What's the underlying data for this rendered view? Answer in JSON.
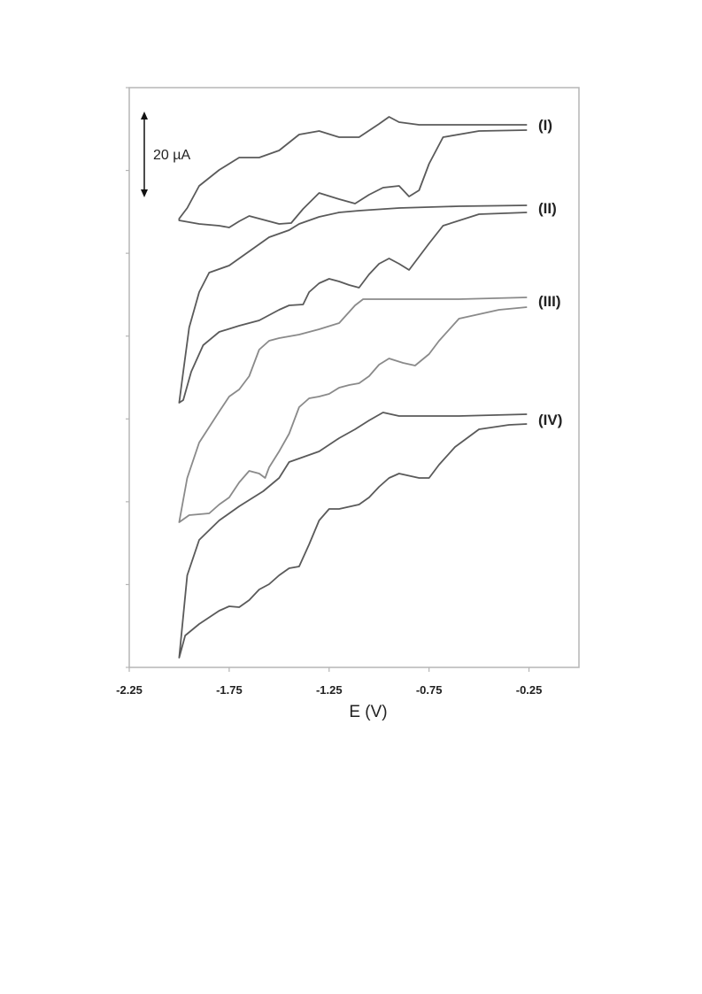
{
  "chart_data": {
    "type": "line",
    "title": "",
    "xlabel": "E (V)",
    "ylabel": "",
    "xlim": [
      -2.25,
      -0.0
    ],
    "x_ticks": [
      "-2.25",
      "-1.75",
      "-1.25",
      "-0.75",
      "-0.25"
    ],
    "x_tick_values": [
      -2.25,
      -1.75,
      -1.25,
      -0.75,
      -0.25
    ],
    "grid": false,
    "legend": "none",
    "scale_bar_label": "20 µA",
    "series": [
      {
        "name": "(I)",
        "color": "#5a5a5a",
        "points": [
          [
            -0.26,
            141
          ],
          [
            -0.6,
            141
          ],
          [
            -0.8,
            141
          ],
          [
            -0.9,
            138
          ],
          [
            -0.95,
            132
          ],
          [
            -1.0,
            140
          ],
          [
            -1.1,
            155
          ],
          [
            -1.2,
            155
          ],
          [
            -1.3,
            148
          ],
          [
            -1.4,
            152
          ],
          [
            -1.5,
            170
          ],
          [
            -1.6,
            178
          ],
          [
            -1.7,
            178
          ],
          [
            -1.8,
            192
          ],
          [
            -1.9,
            210
          ],
          [
            -1.96,
            235
          ],
          [
            -2.0,
            247
          ],
          [
            -2.0,
            249
          ],
          [
            -1.9,
            253
          ],
          [
            -1.8,
            255
          ],
          [
            -1.75,
            257
          ],
          [
            -1.7,
            250
          ],
          [
            -1.65,
            244
          ],
          [
            -1.6,
            247
          ],
          [
            -1.5,
            253
          ],
          [
            -1.44,
            252
          ],
          [
            -1.38,
            236
          ],
          [
            -1.3,
            218
          ],
          [
            -1.2,
            225
          ],
          [
            -1.12,
            230
          ],
          [
            -1.05,
            220
          ],
          [
            -0.98,
            212
          ],
          [
            -0.9,
            210
          ],
          [
            -0.85,
            222
          ],
          [
            -0.8,
            215
          ],
          [
            -0.75,
            185
          ],
          [
            -0.68,
            155
          ],
          [
            -0.5,
            148
          ],
          [
            -0.26,
            147
          ]
        ]
      },
      {
        "name": "(II)",
        "color": "#5a5a5a",
        "points": [
          [
            -0.26,
            232
          ],
          [
            -0.6,
            233
          ],
          [
            -0.9,
            235
          ],
          [
            -1.1,
            238
          ],
          [
            -1.2,
            240
          ],
          [
            -1.3,
            245
          ],
          [
            -1.4,
            253
          ],
          [
            -1.45,
            260
          ],
          [
            -1.55,
            268
          ],
          [
            -1.75,
            300
          ],
          [
            -1.85,
            308
          ],
          [
            -1.9,
            330
          ],
          [
            -1.95,
            370
          ],
          [
            -1.98,
            420
          ],
          [
            -2.0,
            455
          ],
          [
            -1.98,
            452
          ],
          [
            -1.94,
            420
          ],
          [
            -1.88,
            390
          ],
          [
            -1.8,
            375
          ],
          [
            -1.7,
            368
          ],
          [
            -1.6,
            362
          ],
          [
            -1.5,
            350
          ],
          [
            -1.45,
            345
          ],
          [
            -1.38,
            344
          ],
          [
            -1.35,
            330
          ],
          [
            -1.3,
            320
          ],
          [
            -1.25,
            315
          ],
          [
            -1.2,
            318
          ],
          [
            -1.15,
            322
          ],
          [
            -1.1,
            325
          ],
          [
            -1.05,
            310
          ],
          [
            -1.0,
            298
          ],
          [
            -0.95,
            292
          ],
          [
            -0.9,
            298
          ],
          [
            -0.85,
            305
          ],
          [
            -0.8,
            290
          ],
          [
            -0.75,
            275
          ],
          [
            -0.68,
            255
          ],
          [
            -0.5,
            242
          ],
          [
            -0.26,
            240
          ]
        ]
      },
      {
        "name": "(III)",
        "color": "#8a8a8a",
        "points": [
          [
            -0.26,
            336
          ],
          [
            -0.6,
            338
          ],
          [
            -0.85,
            338
          ],
          [
            -1.08,
            338
          ],
          [
            -1.12,
            345
          ],
          [
            -1.2,
            365
          ],
          [
            -1.3,
            372
          ],
          [
            -1.4,
            378
          ],
          [
            -1.5,
            382
          ],
          [
            -1.55,
            385
          ],
          [
            -1.6,
            395
          ],
          [
            -1.65,
            425
          ],
          [
            -1.7,
            440
          ],
          [
            -1.75,
            448
          ],
          [
            -1.8,
            465
          ],
          [
            -1.9,
            500
          ],
          [
            -1.96,
            540
          ],
          [
            -2.0,
            590
          ],
          [
            -1.95,
            582
          ],
          [
            -1.85,
            580
          ],
          [
            -1.8,
            570
          ],
          [
            -1.75,
            562
          ],
          [
            -1.7,
            545
          ],
          [
            -1.65,
            532
          ],
          [
            -1.6,
            535
          ],
          [
            -1.57,
            540
          ],
          [
            -1.55,
            528
          ],
          [
            -1.5,
            510
          ],
          [
            -1.45,
            490
          ],
          [
            -1.4,
            460
          ],
          [
            -1.35,
            450
          ],
          [
            -1.3,
            448
          ],
          [
            -1.25,
            445
          ],
          [
            -1.2,
            438
          ],
          [
            -1.15,
            435
          ],
          [
            -1.1,
            433
          ],
          [
            -1.05,
            425
          ],
          [
            -1.0,
            412
          ],
          [
            -0.95,
            405
          ],
          [
            -0.88,
            410
          ],
          [
            -0.82,
            413
          ],
          [
            -0.75,
            400
          ],
          [
            -0.7,
            385
          ],
          [
            -0.6,
            360
          ],
          [
            -0.4,
            350
          ],
          [
            -0.26,
            347
          ]
        ]
      },
      {
        "name": "(IV)",
        "color": "#5a5a5a",
        "points": [
          [
            -0.26,
            468
          ],
          [
            -0.6,
            470
          ],
          [
            -0.9,
            470
          ],
          [
            -0.98,
            466
          ],
          [
            -1.05,
            475
          ],
          [
            -1.12,
            485
          ],
          [
            -1.2,
            495
          ],
          [
            -1.3,
            510
          ],
          [
            -1.4,
            518
          ],
          [
            -1.45,
            522
          ],
          [
            -1.5,
            540
          ],
          [
            -1.58,
            555
          ],
          [
            -1.7,
            572
          ],
          [
            -1.8,
            588
          ],
          [
            -1.9,
            610
          ],
          [
            -1.96,
            650
          ],
          [
            -2.0,
            743
          ],
          [
            -1.97,
            718
          ],
          [
            -1.9,
            705
          ],
          [
            -1.8,
            690
          ],
          [
            -1.75,
            685
          ],
          [
            -1.7,
            686
          ],
          [
            -1.65,
            678
          ],
          [
            -1.6,
            666
          ],
          [
            -1.55,
            660
          ],
          [
            -1.5,
            650
          ],
          [
            -1.45,
            642
          ],
          [
            -1.4,
            640
          ],
          [
            -1.35,
            615
          ],
          [
            -1.3,
            588
          ],
          [
            -1.25,
            575
          ],
          [
            -1.2,
            575
          ],
          [
            -1.1,
            570
          ],
          [
            -1.05,
            562
          ],
          [
            -1.0,
            550
          ],
          [
            -0.95,
            540
          ],
          [
            -0.9,
            535
          ],
          [
            -0.8,
            540
          ],
          [
            -0.75,
            540
          ],
          [
            -0.7,
            525
          ],
          [
            -0.62,
            505
          ],
          [
            -0.5,
            485
          ],
          [
            -0.35,
            480
          ],
          [
            -0.26,
            479
          ]
        ]
      }
    ]
  }
}
